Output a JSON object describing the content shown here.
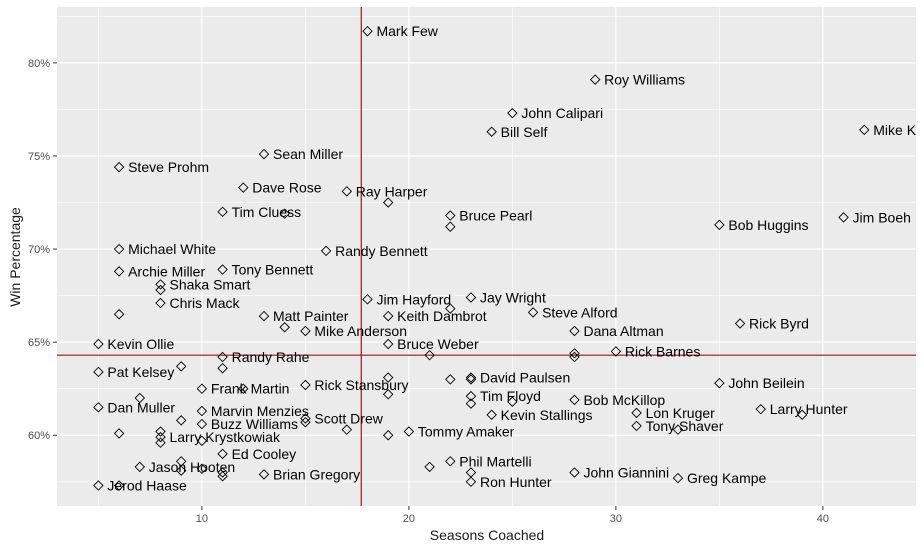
{
  "chart_data": {
    "type": "scatter",
    "xlabel": "Seasons Coached",
    "ylabel": "Win Percentage",
    "xlim": [
      3.0,
      44.5
    ],
    "ylim": [
      56.2,
      83.0
    ],
    "x_ticks": [
      10,
      20,
      30,
      40
    ],
    "x_tick_labels": [
      "10",
      "20",
      "30",
      "40"
    ],
    "y_ticks": [
      60,
      65,
      70,
      75,
      80
    ],
    "y_tick_labels": [
      "60%",
      "65%",
      "70%",
      "75%",
      "80%"
    ],
    "grid": true,
    "reference_lines": {
      "x": 17.7,
      "y": 64.3,
      "color": "#cc0000"
    },
    "colors": {
      "panel": "#ebebeb",
      "grid": "#ffffff",
      "point": "#000000"
    },
    "points": [
      {
        "x": 18,
        "y": 81.7,
        "label": "Mark Few"
      },
      {
        "x": 29,
        "y": 79.1,
        "label": "Roy Williams"
      },
      {
        "x": 25,
        "y": 77.3,
        "label": "John Calipari"
      },
      {
        "x": 24,
        "y": 76.3,
        "label": "Bill Self"
      },
      {
        "x": 42,
        "y": 76.4,
        "label": "Mike K"
      },
      {
        "x": 13,
        "y": 75.1,
        "label": "Sean Miller"
      },
      {
        "x": 6,
        "y": 74.4,
        "label": "Steve Prohm"
      },
      {
        "x": 12,
        "y": 73.3,
        "label": "Dave Rose"
      },
      {
        "x": 17,
        "y": 73.1,
        "label": "Ray Harper"
      },
      {
        "x": 19,
        "y": 72.5,
        "label": ""
      },
      {
        "x": 11,
        "y": 72.0,
        "label": "Tim Cluess"
      },
      {
        "x": 14,
        "y": 71.9,
        "label": ""
      },
      {
        "x": 22,
        "y": 71.8,
        "label": "Bruce Pearl"
      },
      {
        "x": 22,
        "y": 71.2,
        "label": ""
      },
      {
        "x": 41,
        "y": 71.7,
        "label": "Jim Boeh"
      },
      {
        "x": 35,
        "y": 71.3,
        "label": "Bob Huggins"
      },
      {
        "x": 6,
        "y": 70.0,
        "label": "Michael White"
      },
      {
        "x": 16,
        "y": 69.9,
        "label": "Randy Bennett"
      },
      {
        "x": 6,
        "y": 68.8,
        "label": "Archie Miller"
      },
      {
        "x": 11,
        "y": 68.9,
        "label": "Tony Bennett"
      },
      {
        "x": 8,
        "y": 68.1,
        "label": "Shaka Smart"
      },
      {
        "x": 8,
        "y": 67.8,
        "label": ""
      },
      {
        "x": 18,
        "y": 67.3,
        "label": "Jim Hayford"
      },
      {
        "x": 23,
        "y": 67.4,
        "label": "Jay Wright"
      },
      {
        "x": 8,
        "y": 67.1,
        "label": "Chris Mack"
      },
      {
        "x": 22,
        "y": 66.8,
        "label": ""
      },
      {
        "x": 26,
        "y": 66.6,
        "label": "Steve Alford"
      },
      {
        "x": 6,
        "y": 66.5,
        "label": ""
      },
      {
        "x": 13,
        "y": 66.4,
        "label": "Matt Painter"
      },
      {
        "x": 19,
        "y": 66.4,
        "label": "Keith Dambrot"
      },
      {
        "x": 36,
        "y": 66.0,
        "label": "Rick Byrd"
      },
      {
        "x": 14,
        "y": 65.8,
        "label": ""
      },
      {
        "x": 15,
        "y": 65.6,
        "label": "Mike Anderson"
      },
      {
        "x": 28,
        "y": 65.6,
        "label": "Dana Altman"
      },
      {
        "x": 5,
        "y": 64.9,
        "label": "Kevin Ollie"
      },
      {
        "x": 19,
        "y": 64.9,
        "label": "Bruce Weber"
      },
      {
        "x": 30,
        "y": 64.5,
        "label": "Rick Barnes"
      },
      {
        "x": 28,
        "y": 64.4,
        "label": ""
      },
      {
        "x": 28,
        "y": 64.2,
        "label": ""
      },
      {
        "x": 21,
        "y": 64.3,
        "label": ""
      },
      {
        "x": 11,
        "y": 64.2,
        "label": "Randy Rahe"
      },
      {
        "x": 9,
        "y": 63.7,
        "label": ""
      },
      {
        "x": 11,
        "y": 63.6,
        "label": ""
      },
      {
        "x": 5,
        "y": 63.4,
        "label": "Pat Kelsey"
      },
      {
        "x": 23,
        "y": 63.1,
        "label": "David Paulsen"
      },
      {
        "x": 23,
        "y": 63.0,
        "label": ""
      },
      {
        "x": 19,
        "y": 63.1,
        "label": ""
      },
      {
        "x": 22,
        "y": 63.0,
        "label": ""
      },
      {
        "x": 35,
        "y": 62.8,
        "label": "John Beilein"
      },
      {
        "x": 15,
        "y": 62.7,
        "label": "Rick Stansbury"
      },
      {
        "x": 10,
        "y": 62.5,
        "label": "Frank Martin"
      },
      {
        "x": 12,
        "y": 62.5,
        "label": ""
      },
      {
        "x": 19,
        "y": 62.2,
        "label": ""
      },
      {
        "x": 23,
        "y": 62.1,
        "label": "Tim Floyd"
      },
      {
        "x": 7,
        "y": 62.0,
        "label": ""
      },
      {
        "x": 28,
        "y": 61.9,
        "label": "Bob McKillop"
      },
      {
        "x": 25,
        "y": 61.8,
        "label": ""
      },
      {
        "x": 23,
        "y": 61.7,
        "label": ""
      },
      {
        "x": 5,
        "y": 61.5,
        "label": "Dan Muller"
      },
      {
        "x": 37,
        "y": 61.4,
        "label": "Larry Hunter"
      },
      {
        "x": 10,
        "y": 61.3,
        "label": "Marvin Menzies"
      },
      {
        "x": 31,
        "y": 61.2,
        "label": "Lon Kruger"
      },
      {
        "x": 24,
        "y": 61.1,
        "label": "Kevin Stallings"
      },
      {
        "x": 39,
        "y": 61.1,
        "label": ""
      },
      {
        "x": 15,
        "y": 60.9,
        "label": "Scott Drew"
      },
      {
        "x": 15,
        "y": 60.7,
        "label": ""
      },
      {
        "x": 9,
        "y": 60.8,
        "label": ""
      },
      {
        "x": 10,
        "y": 60.6,
        "label": "Buzz Williams"
      },
      {
        "x": 31,
        "y": 60.5,
        "label": "Tony Shaver"
      },
      {
        "x": 17,
        "y": 60.3,
        "label": ""
      },
      {
        "x": 33,
        "y": 60.3,
        "label": ""
      },
      {
        "x": 20,
        "y": 60.2,
        "label": "Tommy Amaker"
      },
      {
        "x": 6,
        "y": 60.1,
        "label": ""
      },
      {
        "x": 8,
        "y": 60.2,
        "label": ""
      },
      {
        "x": 8,
        "y": 59.9,
        "label": "Larry Krystkowiak"
      },
      {
        "x": 19,
        "y": 60.0,
        "label": ""
      },
      {
        "x": 8,
        "y": 59.6,
        "label": ""
      },
      {
        "x": 10,
        "y": 59.7,
        "label": ""
      },
      {
        "x": 11,
        "y": 59.0,
        "label": "Ed Cooley"
      },
      {
        "x": 9,
        "y": 58.6,
        "label": ""
      },
      {
        "x": 22,
        "y": 58.6,
        "label": "Phil Martelli"
      },
      {
        "x": 21,
        "y": 58.3,
        "label": ""
      },
      {
        "x": 7,
        "y": 58.3,
        "label": "Jason Hooten"
      },
      {
        "x": 9,
        "y": 58.1,
        "label": ""
      },
      {
        "x": 10,
        "y": 58.2,
        "label": ""
      },
      {
        "x": 11,
        "y": 58.0,
        "label": ""
      },
      {
        "x": 11,
        "y": 57.8,
        "label": ""
      },
      {
        "x": 13,
        "y": 57.9,
        "label": "Brian Gregory"
      },
      {
        "x": 23,
        "y": 58.0,
        "label": ""
      },
      {
        "x": 28,
        "y": 58.0,
        "label": "John Giannini"
      },
      {
        "x": 23,
        "y": 57.5,
        "label": "Ron Hunter"
      },
      {
        "x": 33,
        "y": 57.7,
        "label": "Greg Kampe"
      },
      {
        "x": 5,
        "y": 57.3,
        "label": "Jerod Haase"
      },
      {
        "x": 6,
        "y": 57.3,
        "label": ""
      }
    ]
  }
}
